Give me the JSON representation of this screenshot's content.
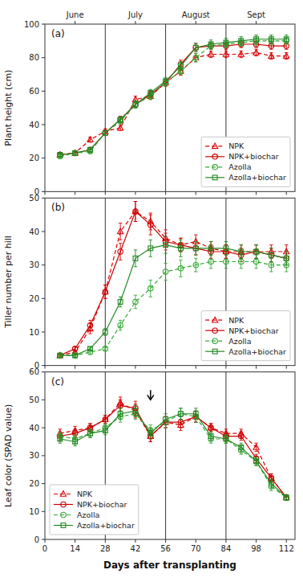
{
  "chart_data": [
    {
      "type": "line",
      "title": "(a)",
      "y_label": "Plant height (cm)",
      "x": [
        7,
        14,
        21,
        28,
        35,
        42,
        49,
        56,
        63,
        70,
        77,
        84,
        91,
        98,
        105,
        112
      ],
      "xlim": [
        0,
        116
      ],
      "xticks": [
        0,
        14,
        28,
        42,
        56,
        70,
        84,
        98,
        112
      ],
      "ylim": [
        0,
        100
      ],
      "yticks": [
        0,
        20,
        40,
        60,
        80,
        100
      ],
      "x2ticks": [
        {
          "value": 14,
          "label": "June"
        },
        {
          "value": 42,
          "label": "July"
        },
        {
          "value": 70,
          "label": "August"
        },
        {
          "value": 98,
          "label": "Sept"
        }
      ],
      "vlines": [
        28,
        56,
        84
      ],
      "legend": "lower right",
      "tick_labels": "y",
      "series": [
        {
          "name": "NPK",
          "color": "#dd0000",
          "marker": "triangle",
          "line_style": "dashed",
          "values": [
            22,
            23,
            31,
            36,
            38,
            55,
            57,
            65,
            72,
            80,
            82,
            82,
            82,
            83,
            81,
            81
          ],
          "errors": [
            1.0,
            1.0,
            1.5,
            1.5,
            1.5,
            2.0,
            2.0,
            2.0,
            2.5,
            2.5,
            2.0,
            2.0,
            2.0,
            2.0,
            2.0,
            2.0
          ]
        },
        {
          "name": "NPK+biochar",
          "color": "#cc0000",
          "marker": "circle",
          "line_style": "solid",
          "values": [
            22,
            23,
            25,
            35,
            43,
            52,
            58,
            65,
            76,
            86,
            87,
            87,
            88,
            88,
            87,
            87
          ],
          "errors": [
            1.0,
            1.0,
            1.0,
            1.5,
            2.0,
            2.0,
            2.0,
            2.0,
            2.5,
            2.5,
            2.0,
            2.0,
            2.0,
            2.0,
            2.0,
            2.0
          ]
        },
        {
          "name": "Azolla",
          "color": "#33aa33",
          "marker": "circle",
          "line_style": "dashed",
          "values": [
            21,
            23,
            24,
            35,
            42,
            52,
            57,
            65,
            72,
            80,
            87,
            88,
            89,
            90,
            90,
            90
          ],
          "errors": [
            1.0,
            1.0,
            1.0,
            1.5,
            1.5,
            2.0,
            2.0,
            2.0,
            2.0,
            2.5,
            2.0,
            2.0,
            2.0,
            2.5,
            2.5,
            2.0
          ]
        },
        {
          "name": "Azolla+biochar",
          "color": "#228822",
          "marker": "square",
          "line_style": "solid",
          "values": [
            22,
            23,
            25,
            35,
            43,
            52,
            59,
            66,
            75,
            86,
            88,
            89,
            90,
            91,
            91,
            91
          ],
          "errors": [
            1.0,
            1.0,
            1.0,
            1.5,
            1.5,
            2.0,
            2.0,
            2.0,
            2.5,
            2.5,
            2.5,
            2.5,
            2.5,
            2.5,
            2.5,
            2.5
          ]
        }
      ]
    },
    {
      "type": "line",
      "title": "(b)",
      "y_label": "Tiller number per hill",
      "x": [
        7,
        14,
        21,
        28,
        35,
        42,
        49,
        56,
        63,
        70,
        77,
        84,
        91,
        98,
        105,
        112
      ],
      "xlim": [
        0,
        116
      ],
      "xticks": [
        0,
        14,
        28,
        42,
        56,
        70,
        84,
        98,
        112
      ],
      "ylim": [
        0,
        50
      ],
      "yticks": [
        0,
        10,
        20,
        30,
        40,
        50
      ],
      "vlines": [
        28,
        56,
        84
      ],
      "legend": "lower right",
      "tick_labels": "y",
      "series": [
        {
          "name": "NPK",
          "color": "#dd0000",
          "marker": "triangle",
          "line_style": "dashed",
          "values": [
            3,
            4,
            11,
            22,
            40,
            46,
            43,
            38,
            36,
            37,
            35,
            34,
            34,
            34,
            34,
            34
          ],
          "errors": [
            0.5,
            0.5,
            1.5,
            2.0,
            2.5,
            3.0,
            2.5,
            2.5,
            2.0,
            2.0,
            2.0,
            2.0,
            2.0,
            2.0,
            2.0,
            2.0
          ]
        },
        {
          "name": "NPK+biochar",
          "color": "#cc0000",
          "marker": "circle",
          "line_style": "solid",
          "values": [
            3,
            5,
            12,
            22,
            34,
            46,
            42,
            37,
            36,
            35,
            34,
            34,
            33,
            34,
            33,
            32
          ],
          "errors": [
            0.5,
            0.5,
            1.5,
            2.0,
            2.5,
            3.0,
            3.0,
            2.5,
            2.0,
            2.0,
            2.0,
            2.0,
            2.0,
            2.0,
            2.0,
            2.0
          ]
        },
        {
          "name": "Azolla",
          "color": "#33aa33",
          "marker": "circle",
          "line_style": "dashed",
          "values": [
            3,
            3,
            4,
            5,
            12,
            19,
            23,
            28,
            29,
            30,
            31,
            31,
            31,
            31,
            30,
            30
          ],
          "errors": [
            0.5,
            0.5,
            0.5,
            0.5,
            1.5,
            2.0,
            2.5,
            2.5,
            2.5,
            2.0,
            2.0,
            2.0,
            2.0,
            2.0,
            2.0,
            2.0
          ]
        },
        {
          "name": "Azolla+biochar",
          "color": "#228822",
          "marker": "square",
          "line_style": "solid",
          "values": [
            3,
            3,
            5,
            10,
            19,
            32,
            35,
            36,
            35,
            35,
            35,
            35,
            34,
            34,
            33,
            32
          ],
          "errors": [
            0.5,
            0.5,
            0.5,
            1.0,
            1.5,
            2.5,
            2.5,
            2.5,
            2.5,
            2.0,
            2.0,
            2.0,
            2.0,
            2.0,
            2.0,
            2.0
          ]
        }
      ]
    },
    {
      "type": "line",
      "title": "(c)",
      "y_label": "Leaf color (SPAD value)",
      "x_label": "Days after transplanting",
      "x": [
        7,
        14,
        21,
        28,
        35,
        42,
        49,
        56,
        63,
        70,
        77,
        84,
        91,
        98,
        105,
        112
      ],
      "xlim": [
        0,
        116
      ],
      "xticks": [
        0,
        14,
        28,
        42,
        56,
        70,
        84,
        98,
        112
      ],
      "ylim": [
        0,
        60
      ],
      "yticks": [
        0,
        10,
        20,
        30,
        40,
        50,
        60
      ],
      "vlines": [
        28,
        56,
        84
      ],
      "legend": "lower left",
      "annotations": [
        {
          "type": "arrow",
          "x": 49,
          "y": 50,
          "y_from": 53.5
        }
      ],
      "series": [
        {
          "name": "NPK",
          "color": "#dd0000",
          "marker": "triangle",
          "line_style": "dashed",
          "values": [
            38,
            39,
            40,
            43,
            49,
            46,
            37,
            42,
            41,
            44,
            40,
            38,
            38,
            33,
            22,
            15
          ],
          "errors": [
            1.5,
            1.5,
            1.5,
            1.5,
            2.0,
            2.5,
            2.0,
            2.0,
            2.0,
            2.0,
            1.5,
            1.5,
            1.5,
            1.5,
            1.5,
            1.0
          ]
        },
        {
          "name": "NPK+biochar",
          "color": "#cc0000",
          "marker": "circle",
          "line_style": "solid",
          "values": [
            37,
            38,
            40,
            43,
            48,
            47,
            37,
            42,
            42,
            44,
            40,
            37,
            37,
            29,
            22,
            15
          ],
          "errors": [
            1.5,
            1.5,
            1.5,
            1.5,
            2.0,
            2.5,
            2.0,
            2.0,
            2.0,
            2.0,
            1.5,
            1.5,
            1.5,
            1.5,
            1.5,
            1.0
          ]
        },
        {
          "name": "Azolla",
          "color": "#33aa33",
          "marker": "circle",
          "line_style": "dashed",
          "values": [
            37,
            36,
            38,
            40,
            44,
            45,
            39,
            42,
            45,
            44,
            36,
            36,
            32,
            28,
            19,
            15
          ],
          "errors": [
            1.5,
            1.5,
            1.5,
            1.5,
            2.0,
            2.0,
            2.0,
            2.0,
            2.0,
            2.0,
            1.5,
            1.5,
            1.5,
            1.5,
            1.5,
            1.0
          ]
        },
        {
          "name": "Azolla+biochar",
          "color": "#228822",
          "marker": "square",
          "line_style": "solid",
          "values": [
            36,
            35,
            38,
            39,
            45,
            46,
            38,
            43,
            45,
            45,
            37,
            36,
            33,
            28,
            20,
            15
          ],
          "errors": [
            1.5,
            1.5,
            1.5,
            1.5,
            2.0,
            2.0,
            2.0,
            2.0,
            2.0,
            2.0,
            1.5,
            1.5,
            1.5,
            1.5,
            1.5,
            1.0
          ]
        }
      ]
    }
  ]
}
